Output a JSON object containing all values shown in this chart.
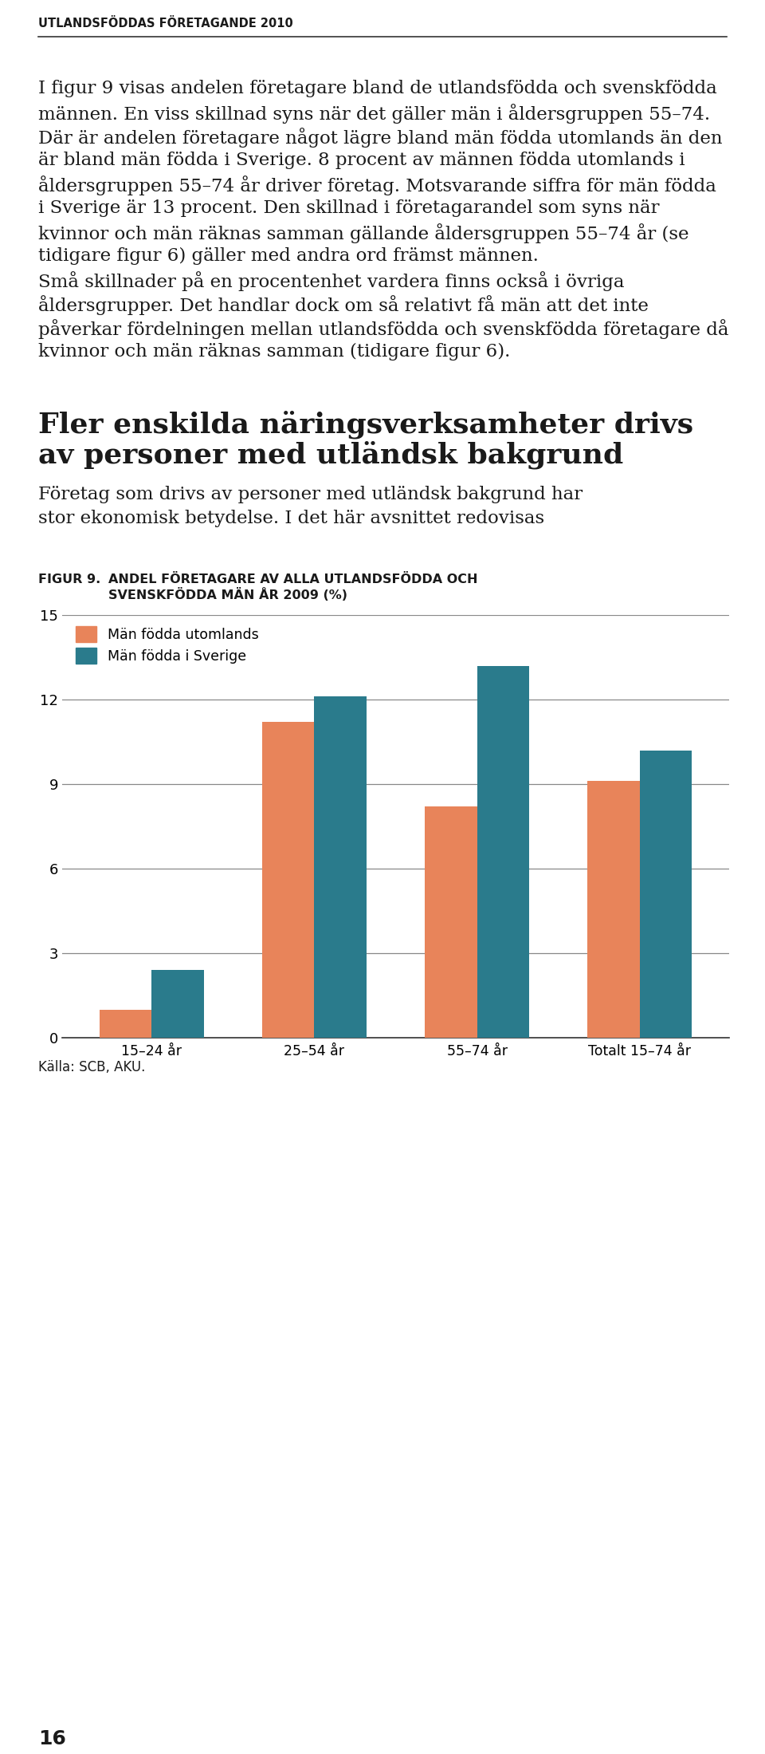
{
  "page_title": "UTLANDSFÖDDAS FÖRETAGANDE 2010",
  "body_paragraph": "I figur 9 visas andelen företagare bland de utlandsfödda och svenskfödda männen. En viss skillnad syns när det gäller män i åldersgruppen 55–74. Där är andelen företagare något lägre bland män födda utomlands än den är bland män födda i Sverige. 8 procent av männen födda utomlands i åldersgruppen 55–74 år driver företag. Motsvarande siffra för män födda i Sverige är 13 procent. Den skillnad i företagarandel som syns när kvinnor och män räknas samman gällande åldersgruppen 55–74 år (se tidigare figur 6) gäller med andra ord främst männen.\n    Små skillnader på en procentenhet vardera finns också i övriga åldersgrupper. Det handlar dock om så relativt få män att det inte påverkar fördelningen mellan utlandsfödda och svenskfödda företagare då kvinnor och män räknas samman (tidigare figur 6).",
  "section_title_line1": "Fler enskilda näringsverksamheter drivs",
  "section_title_line2": "av personer med utländsk bakgrund",
  "section_subtitle_line1": "Företag som drivs av personer med utländsk bakgrund har",
  "section_subtitle_line2": "stor ekonomisk betydelse. I det här avsnittet redovisas",
  "figure_label": "FIGUR 9.",
  "figure_title_line1": "ANDEL FÖRETAGARE AV ALLA UTLANDSFÖDDA OCH",
  "figure_title_line2": "SVENSKFÖDDA MÄN ÅR 2009 (%)",
  "categories": [
    "15–24 år",
    "25–54 år",
    "55–74 år",
    "Totalt 15–74 år"
  ],
  "series": [
    {
      "name": "Män födda utomlands",
      "color": "#E8845A",
      "values": [
        1.0,
        11.2,
        8.2,
        9.1
      ]
    },
    {
      "name": "Män födda i Sverige",
      "color": "#2A7B8C",
      "values": [
        2.4,
        12.1,
        13.2,
        10.2
      ]
    }
  ],
  "ylim": [
    0,
    15
  ],
  "yticks": [
    0,
    3,
    6,
    9,
    12,
    15
  ],
  "source": "Källa: SCB, AKU.",
  "page_number": "16",
  "background_color": "#FFFFFF",
  "text_color": "#1a1a1a",
  "grid_color": "#888888"
}
